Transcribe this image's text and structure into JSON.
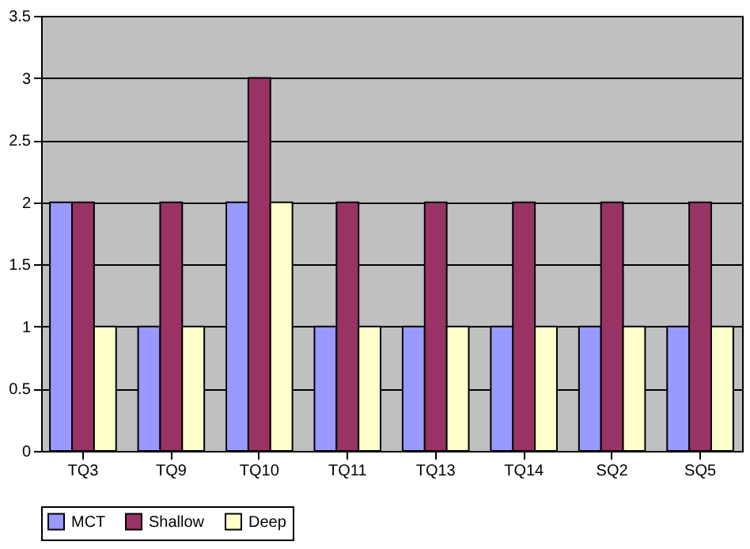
{
  "chart_data": {
    "type": "bar",
    "categories": [
      "TQ3",
      "TQ9",
      "TQ10",
      "TQ11",
      "TQ13",
      "TQ14",
      "SQ2",
      "SQ5"
    ],
    "series": [
      {
        "name": "MCT",
        "color": "#9999ff",
        "values": [
          2,
          1,
          2,
          1,
          1,
          1,
          1,
          1
        ]
      },
      {
        "name": "Shallow",
        "color": "#993366",
        "values": [
          2,
          2,
          3,
          2,
          2,
          2,
          2,
          2
        ]
      },
      {
        "name": "Deep",
        "color": "#ffffcc",
        "values": [
          1,
          1,
          2,
          1,
          1,
          1,
          1,
          1
        ]
      }
    ],
    "ylim": [
      0,
      3.5
    ],
    "yticks": [
      0,
      0.5,
      1,
      1.5,
      2,
      2.5,
      3,
      3.5
    ],
    "grid": "y",
    "legend": "bottom"
  }
}
